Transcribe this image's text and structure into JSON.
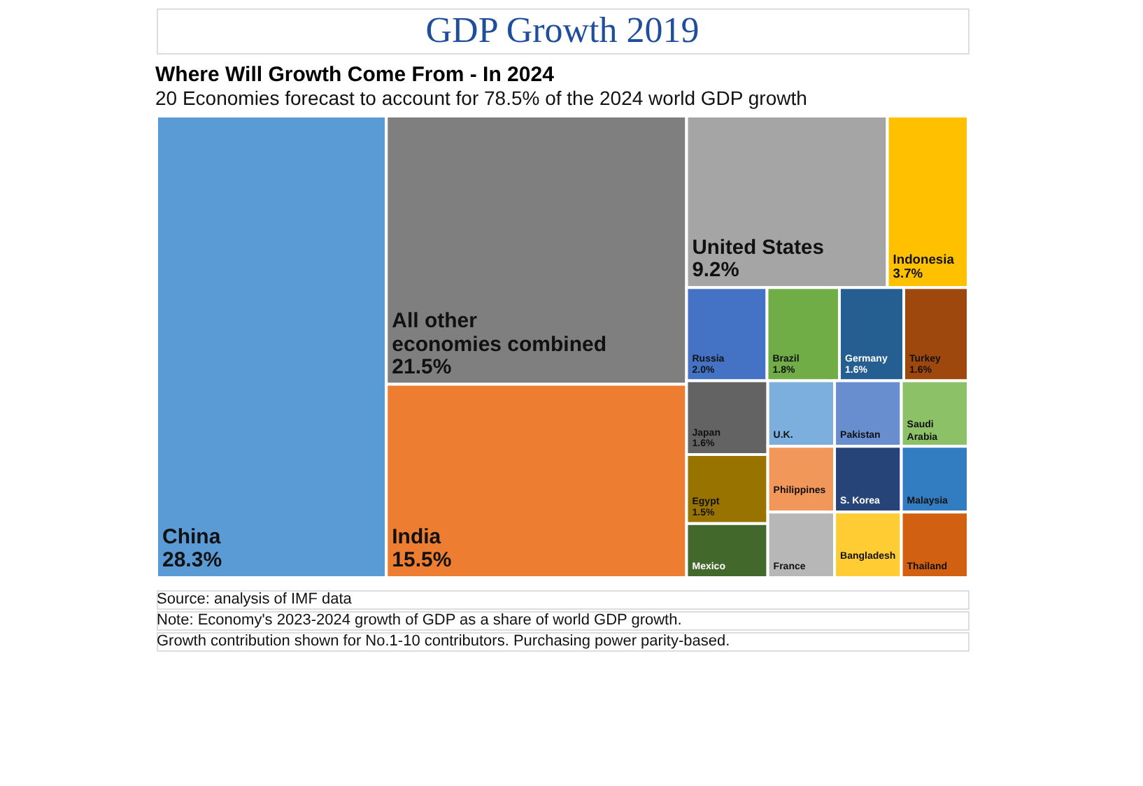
{
  "chart_data": {
    "type": "other",
    "title": "Where Will Growth Come From - In 2024",
    "subtitle": "20 Economies forecast to account for 78.5% of the 2024 world GDP growth",
    "categories": [
      "China",
      "All other economies combined",
      "India",
      "United States",
      "Indonesia",
      "Russia",
      "Brazil",
      "Germany",
      "Turkey",
      "Japan",
      "Egypt",
      "Mexico",
      "U.K.",
      "Philippines",
      "France",
      "Pakistan",
      "Saudi Arabia",
      "S. Korea",
      "Bangladesh",
      "Malaysia",
      "Thailand"
    ],
    "values": [
      28.3,
      21.5,
      15.5,
      9.2,
      3.7,
      2.0,
      1.8,
      1.6,
      1.6,
      1.6,
      1.5,
      null,
      null,
      null,
      null,
      null,
      null,
      null,
      null,
      null,
      null
    ],
    "value_labels": [
      "28.3%",
      "21.5%",
      "15.5%",
      "9.2%",
      "3.7%",
      "2.0%",
      "1.8%",
      "1.6%",
      "1.6%",
      "1.6%",
      "1.5%",
      null,
      null,
      null,
      null,
      null,
      null,
      null,
      null,
      null,
      null
    ],
    "colors": [
      "#5b9bd5",
      "#7f7f7f",
      "#ed7d31",
      "#a5a5a5",
      "#ffc000",
      "#4472c4",
      "#70ad47",
      "#255e91",
      "#9e480e",
      "#636363",
      "#997300",
      "#43682b",
      "#7cafdd",
      "#f1975a",
      "#b7b7b7",
      "#698ed0",
      "#8cc168",
      "#264478",
      "#ffcd33",
      "#327dc2",
      "#d26012"
    ],
    "annotations": [
      "GDP Growth 2019",
      "Source: analysis of IMF data",
      "Note: Economy's 2023-2024 growth of GDP as a share of world GDP growth.",
      "Growth contribution shown for No.1-10 contributors. Purchasing power parity-based."
    ]
  }
}
